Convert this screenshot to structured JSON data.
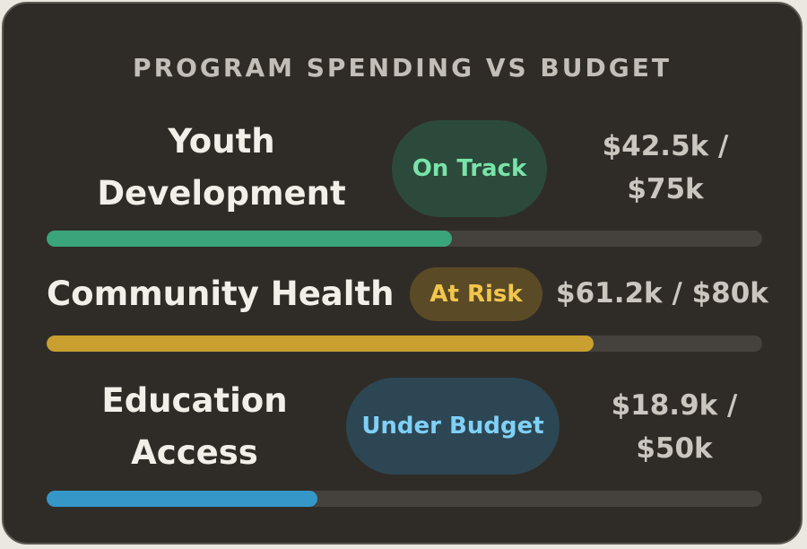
{
  "title": "PROGRAM SPENDING VS BUDGET",
  "programs": [
    {
      "name": "Youth Development",
      "status": "On Track",
      "amount": "$42.5k / $75k",
      "fraction": 0.567,
      "bar_color": "#3aa57a",
      "badge_bg": "#2c4a3b",
      "badge_text": "#79e3a9"
    },
    {
      "name": "Community Health",
      "status": "At Risk",
      "amount": "$61.2k / $80k",
      "fraction": 0.765,
      "bar_color": "#c9a02f",
      "badge_bg": "#5a4a26",
      "badge_text": "#f2c64c"
    },
    {
      "name": "Education Access",
      "status": "Under Budget",
      "amount": "$18.9k / $50k",
      "fraction": 0.378,
      "bar_color": "#3597c8",
      "badge_bg": "#2d4653",
      "badge_text": "#7fd0f7"
    }
  ]
}
